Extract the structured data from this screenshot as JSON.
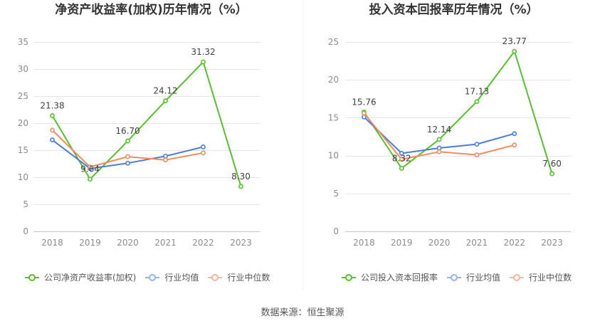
{
  "chart_data": [
    {
      "type": "line",
      "title": "净资产收益率(加权)历年情况（%）",
      "categories": [
        "2018",
        "2019",
        "2020",
        "2021",
        "2022",
        "2023"
      ],
      "xlabel": "",
      "ylabel": "",
      "ylim": [
        0,
        35
      ],
      "yticks": [
        0,
        5,
        10,
        15,
        20,
        25,
        30,
        35
      ],
      "grid": true,
      "legend": "bottom",
      "series": [
        {
          "name": "公司净资产收益率(加权)",
          "color": "#56c02b",
          "legend_color": "#56c02b",
          "values": [
            21.38,
            9.64,
            16.7,
            24.12,
            31.32,
            8.3
          ],
          "labels": [
            "21.38",
            "9.64",
            "16.70",
            "24.12",
            "31.32",
            "8.30"
          ]
        },
        {
          "name": "行业均值",
          "color": "#4a7ed8",
          "legend_color": "#93b4ee",
          "values": [
            16.9,
            11.6,
            12.6,
            13.9,
            15.6,
            null
          ]
        },
        {
          "name": "行业中位数",
          "color": "#f08c5f",
          "legend_color": "#f6b59c",
          "values": [
            18.7,
            11.9,
            13.8,
            13.2,
            14.5,
            null
          ]
        }
      ]
    },
    {
      "type": "line",
      "title": "投入资本回报率历年情况（%）",
      "categories": [
        "2018",
        "2019",
        "2020",
        "2021",
        "2022",
        "2023"
      ],
      "xlabel": "",
      "ylabel": "",
      "ylim": [
        0,
        25
      ],
      "yticks": [
        0,
        5,
        10,
        15,
        20,
        25
      ],
      "grid": true,
      "legend": "bottom",
      "series": [
        {
          "name": "公司投入资本回报率",
          "color": "#56c02b",
          "legend_color": "#56c02b",
          "values": [
            15.76,
            8.32,
            12.14,
            17.13,
            23.77,
            7.6
          ],
          "labels": [
            "15.76",
            "8.32",
            "12.14",
            "17.13",
            "23.77",
            "7.60"
          ]
        },
        {
          "name": "行业均值",
          "color": "#4a7ed8",
          "legend_color": "#93b4ee",
          "values": [
            15.1,
            10.3,
            11.0,
            11.5,
            12.9,
            null
          ]
        },
        {
          "name": "行业中位数",
          "color": "#f08c5f",
          "legend_color": "#f6b59c",
          "values": [
            15.6,
            9.5,
            10.5,
            10.1,
            11.4,
            null
          ]
        }
      ]
    }
  ],
  "source": "数据来源：恒生聚源"
}
